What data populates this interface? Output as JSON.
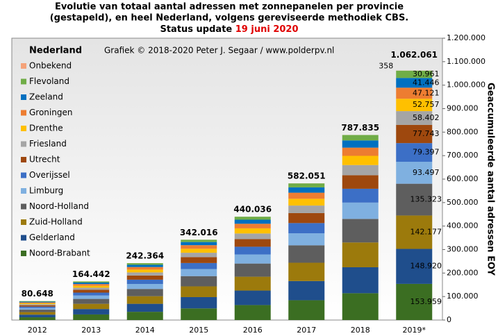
{
  "chart_data": {
    "type": "stacked_bar",
    "title": [
      "Evolutie van totaal aantal adressen met zonnepanelen per provincie",
      "(gestapeld), en heel Nederland, volgens gereviseerde methodiek CBS.",
      "Status update"
    ],
    "title_highlight": "19 juni 2020",
    "title_highlight_color": "#e00000",
    "annotation": "Grafiek © 2018-2020 Peter J. Segaar / www.polderpv.nl",
    "y_label": "Geaccumuleerde aantal adressen EOY",
    "categories": [
      "2012",
      "2013",
      "2014",
      "2015",
      "2016",
      "2017",
      "2018",
      "2019*"
    ],
    "ylim": [
      0,
      1200000
    ],
    "yticks": [
      0,
      {
        "value": 100000,
        "label": "100.000"
      },
      {
        "value": 200000,
        "label": "200.000"
      },
      {
        "value": 300000,
        "label": "300.000"
      },
      {
        "value": 400000,
        "label": "400.000"
      },
      {
        "value": 500000,
        "label": "500.000"
      },
      {
        "value": 600000,
        "label": "600.000"
      },
      {
        "value": 700000,
        "label": "700.000"
      },
      {
        "value": 800000,
        "label": "800.000"
      },
      {
        "value": 900000,
        "label": "900.000"
      },
      {
        "value": 1000000,
        "label": "1.000.000"
      },
      {
        "value": 1100000,
        "label": "1.100.000"
      },
      {
        "value": 1200000,
        "label": "1.200.000"
      }
    ],
    "legend_position": "top-left",
    "totals": {
      "name": "Nederland",
      "values": [
        80648,
        164442,
        242364,
        342016,
        440036,
        582051,
        787835,
        1062061
      ],
      "value_labels": [
        "80.648",
        "164.442",
        "242.364",
        "342.016",
        "440.036",
        "582.051",
        "787.835",
        "1.062.061"
      ]
    },
    "series": [
      {
        "name": "Noord-Brabant",
        "color": "#3b6e22",
        "values": [
          11700,
          23800,
          35100,
          49600,
          63800,
          84400,
          114200,
          153959
        ],
        "value_labels": [
          null,
          null,
          null,
          null,
          null,
          null,
          null,
          "153.959"
        ]
      },
      {
        "name": "Gelderland",
        "color": "#1f4e8c",
        "values": [
          11300,
          23100,
          34000,
          48000,
          61700,
          81600,
          110500,
          148920
        ],
        "value_labels": [
          null,
          null,
          null,
          null,
          null,
          null,
          null,
          "148.920"
        ]
      },
      {
        "name": "Zuid-Holland",
        "color": "#9c7a0c",
        "values": [
          10800,
          22000,
          32400,
          45800,
          58900,
          77900,
          105500,
          142177
        ],
        "value_labels": [
          null,
          null,
          null,
          null,
          null,
          null,
          null,
          "142.177"
        ]
      },
      {
        "name": "Noord-Holland",
        "color": "#5e5e5e",
        "values": [
          10300,
          21000,
          30900,
          43600,
          56100,
          74200,
          100400,
          135323
        ],
        "value_labels": [
          null,
          null,
          null,
          null,
          null,
          null,
          null,
          "135.323"
        ]
      },
      {
        "name": "Limburg",
        "color": "#7fb0e0",
        "values": [
          7100,
          14500,
          21300,
          30100,
          38700,
          51200,
          69400,
          93497
        ],
        "value_labels": [
          null,
          null,
          null,
          null,
          null,
          null,
          null,
          "93.497"
        ]
      },
      {
        "name": "Overijssel",
        "color": "#3c6fc6",
        "values": [
          6000,
          12300,
          18100,
          25600,
          32900,
          43500,
          58900,
          79397
        ],
        "value_labels": [
          null,
          null,
          null,
          null,
          null,
          null,
          null,
          "79.397"
        ]
      },
      {
        "name": "Utrecht",
        "color": "#9e480e",
        "values": [
          5900,
          12000,
          17700,
          25000,
          32200,
          42600,
          57700,
          77743
        ],
        "value_labels": [
          null,
          null,
          null,
          null,
          null,
          null,
          null,
          "77.743"
        ]
      },
      {
        "name": "Friesland",
        "color": "#a5a5a5",
        "values": [
          4400,
          9000,
          13300,
          18800,
          24200,
          32000,
          43300,
          58402
        ],
        "value_labels": [
          null,
          null,
          null,
          null,
          null,
          null,
          null,
          "58.402"
        ]
      },
      {
        "name": "Drenthe",
        "color": "#ffc000",
        "values": [
          4000,
          8200,
          12000,
          17000,
          21900,
          28900,
          39100,
          52757
        ],
        "value_labels": [
          null,
          null,
          null,
          null,
          null,
          null,
          null,
          "52.757"
        ]
      },
      {
        "name": "Groningen",
        "color": "#ed7d31",
        "values": [
          3600,
          7300,
          10800,
          15200,
          19500,
          25800,
          35000,
          47121
        ],
        "value_labels": [
          null,
          null,
          null,
          null,
          null,
          null,
          null,
          "47.121"
        ]
      },
      {
        "name": "Zeeland",
        "color": "#0070c0",
        "values": [
          3100,
          6400,
          9500,
          13300,
          17200,
          22700,
          30700,
          41446
        ],
        "value_labels": [
          null,
          null,
          null,
          null,
          null,
          null,
          null,
          "41.446"
        ]
      },
      {
        "name": "Flevoland",
        "color": "#70ad47",
        "values": [
          2400,
          4800,
          7100,
          9900,
          12800,
          17000,
          23000,
          30961
        ],
        "value_labels": [
          null,
          null,
          null,
          null,
          null,
          null,
          null,
          "30.961"
        ]
      },
      {
        "name": "Onbekend",
        "color": "#f4a27a",
        "values": [
          48,
          42,
          164,
          116,
          136,
          251,
          135,
          358
        ],
        "value_labels": [
          null,
          null,
          null,
          null,
          null,
          null,
          null,
          "358"
        ]
      }
    ]
  }
}
